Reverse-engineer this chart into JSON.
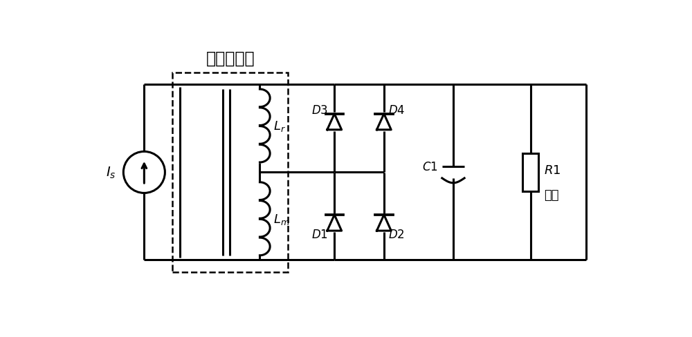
{
  "title": "电流互感器",
  "label_Is": "$I_s$",
  "label_Lr": "$L_r$",
  "label_Lm": "$L_m$",
  "label_D1": "$D1$",
  "label_D2": "$D2$",
  "label_D3": "$D3$",
  "label_D4": "$D4$",
  "label_C1": "$C1$",
  "label_R1": "$R1$",
  "label_load": "负载",
  "line_color": "#000000",
  "lw": 2.2,
  "bg_color": "#ffffff"
}
